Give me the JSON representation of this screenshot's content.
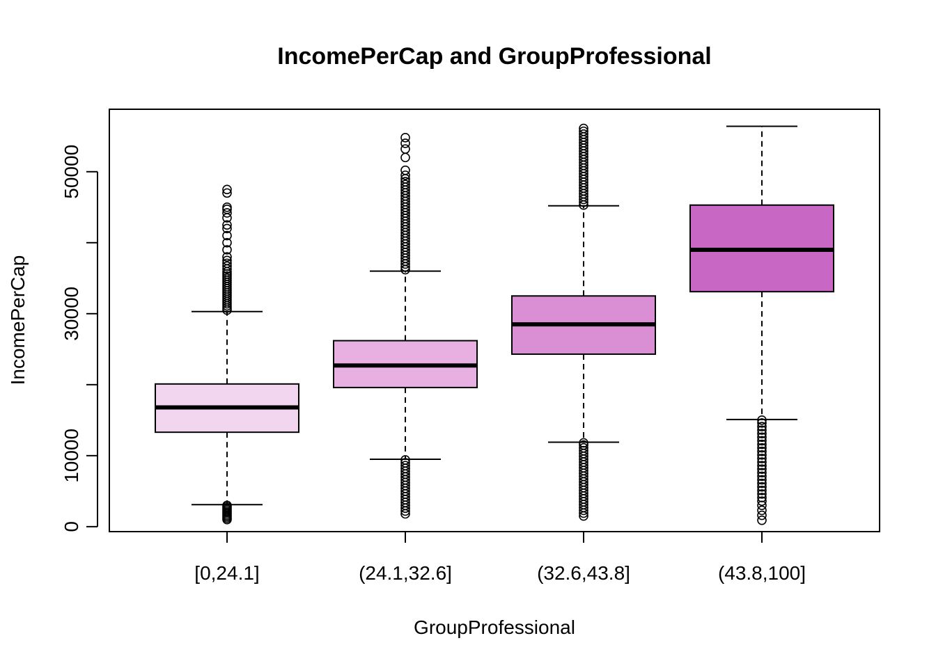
{
  "chart_data": {
    "type": "boxplot",
    "title": "IncomePerCap and GroupProfessional",
    "xlabel": "GroupProfessional",
    "ylabel": "IncomePerCap",
    "ylim": [
      -700,
      58800
    ],
    "yticks": [
      0,
      10000,
      20000,
      30000,
      40000,
      50000
    ],
    "ytick_labels": [
      "0",
      "10000",
      "",
      "30000",
      "",
      "50000"
    ],
    "categories": [
      "[0,24.1]",
      "(24.1,32.6]",
      "(32.6,43.8]",
      "(43.8,100]"
    ],
    "colors": [
      "#F2D5EF",
      "#E7B0E1",
      "#DA8ED3",
      "#C967C5"
    ],
    "boxes": [
      {
        "category": "[0,24.1]",
        "whisker_low": 3100,
        "q1": 13300,
        "median": 16800,
        "q3": 20100,
        "whisker_high": 30300,
        "outliers_low": [
          1000,
          1200,
          1400,
          1600,
          1800,
          2000,
          2200,
          2400,
          2600,
          2800,
          3000
        ],
        "outliers_high": [
          30500,
          30800,
          31100,
          31400,
          31700,
          32000,
          32300,
          32600,
          32900,
          33200,
          33500,
          33800,
          34100,
          34400,
          34700,
          35000,
          35300,
          35600,
          35900,
          36300,
          36700,
          37100,
          37500,
          38000,
          39000,
          40000,
          41000,
          42000,
          42500,
          43500,
          44200,
          44700,
          45000,
          47000,
          47500
        ]
      },
      {
        "category": "(24.1,32.6]",
        "whisker_low": 9500,
        "q1": 19600,
        "median": 22700,
        "q3": 26200,
        "whisker_high": 36000,
        "outliers_low": [
          1800,
          2200,
          2600,
          3000,
          3400,
          3800,
          4200,
          4600,
          5000,
          5400,
          5800,
          6200,
          6600,
          7000,
          7400,
          7800,
          8200,
          8600,
          9000,
          9400
        ],
        "outliers_high": [
          36200,
          36600,
          37000,
          37400,
          37800,
          38200,
          38600,
          39000,
          39400,
          39800,
          40200,
          40600,
          41000,
          41400,
          41800,
          42200,
          42600,
          43000,
          43400,
          43800,
          44200,
          44600,
          45000,
          45400,
          45800,
          46200,
          46600,
          47000,
          47400,
          47800,
          48200,
          48600,
          49000,
          49500,
          50200,
          52000,
          53200,
          54000,
          54800
        ]
      },
      {
        "category": "(32.6,43.8]",
        "whisker_low": 11900,
        "q1": 24300,
        "median": 28500,
        "q3": 32500,
        "whisker_high": 45200,
        "outliers_low": [
          1500,
          1900,
          2300,
          2700,
          3100,
          3500,
          3900,
          4300,
          4700,
          5100,
          5500,
          5900,
          6300,
          6700,
          7100,
          7500,
          7900,
          8300,
          8700,
          9100,
          9500,
          9900,
          10300,
          10700,
          11100,
          11500,
          11800
        ],
        "outliers_high": [
          45300,
          45700,
          46100,
          46500,
          46900,
          47300,
          47700,
          48100,
          48500,
          48900,
          49300,
          49700,
          50100,
          50500,
          50900,
          51300,
          51700,
          52100,
          52500,
          52900,
          53300,
          53700,
          54100,
          54500,
          54900,
          55300,
          55700,
          56100
        ]
      },
      {
        "category": "(43.8,100]",
        "whisker_low": 15100,
        "q1": 33100,
        "median": 39000,
        "q3": 45300,
        "whisker_high": 56400,
        "outliers_low": [
          900,
          1600,
          2300,
          3000,
          3600,
          4100,
          4600,
          5100,
          5600,
          6100,
          6600,
          7100,
          7600,
          8100,
          8600,
          9100,
          9600,
          10100,
          10600,
          11100,
          11600,
          12100,
          12600,
          13100,
          13600,
          14100,
          14600,
          15000
        ],
        "outliers_high": []
      }
    ]
  }
}
